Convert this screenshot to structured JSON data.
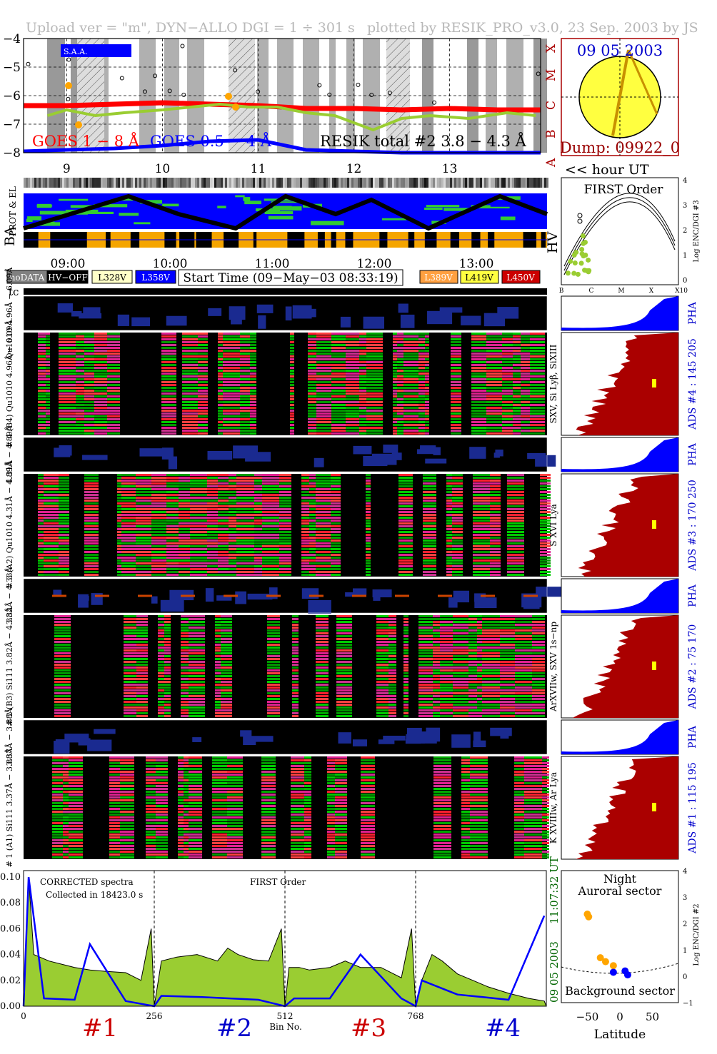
{
  "header": {
    "left": "Upload ver = \"m\", DYN−ALLO DGI =   1 ÷ 301 s",
    "right": "plotted by RESIK_PRO_v3.0, 23 Sep. 2003 by JS"
  },
  "colors": {
    "goes_long": "#ff0000",
    "goes_short": "#0000ff",
    "resik": "#9acd32",
    "orange": "#ffa500",
    "gold": "#f5a500",
    "pha_blue": "#0000ff",
    "ads_red": "#aa0000",
    "sun": "#ffff40",
    "date_blue": "#0000cc",
    "dump": "#990000",
    "green_note": "#006600"
  },
  "goes": {
    "yticks": [
      "−4",
      "−5",
      "−6",
      "−7",
      "−8"
    ],
    "classes": [
      "X",
      "M",
      "C",
      "B",
      "A"
    ],
    "legend_long": "GOES 1 − 8 Å",
    "legend_short": "GOES 0.5 − 4 Å",
    "legend_resik": "RESIK total #2 3.8 − 4.3 Å",
    "saa_label": "S.A.A.",
    "hour_ticks": [
      "9",
      "10",
      "11",
      "12",
      "13"
    ],
    "hour_unit": "<< hour UT"
  },
  "sun_panel": {
    "date": "09 05 2003",
    "dump": "Dump: 09922_0"
  },
  "aux_panels": {
    "prot_label": "PROT & EL",
    "ba_label": "BA",
    "hv_label": "HV",
    "time_ticks": [
      "09:00",
      "10:00",
      "11:00",
      "12:00",
      "13:00"
    ]
  },
  "first_order": {
    "title": "FIRST Order",
    "ylabel": "Log ENC/DGI #3",
    "yticks": [
      "4",
      "3",
      "2",
      "1",
      "0"
    ],
    "xticks": [
      "B",
      "C",
      "M",
      "X",
      "X10"
    ]
  },
  "legend": {
    "items": [
      {
        "label": "noDATA",
        "color": "#808080",
        "text_color": "#ffffff"
      },
      {
        "label": "HV−OFF",
        "color": "#000000",
        "text_color": "#ffffff"
      },
      {
        "label": "L328V",
        "color": "#ffffc8",
        "text_color": "#000000"
      },
      {
        "label": "L358V",
        "color": "#0000ff",
        "text_color": "#ffffff"
      }
    ],
    "items_right": [
      {
        "label": "L389V",
        "color": "#ffa040",
        "text_color": "#ffffff"
      },
      {
        "label": "L419V",
        "color": "#ffff40",
        "text_color": "#000000"
      },
      {
        "label": "L450V",
        "color": "#cc0000",
        "text_color": "#ffffff"
      }
    ],
    "start_time": "Start Time (09−May−03 08:33:19)"
  },
  "tc_label": "tc",
  "channels": [
    {
      "id": "4",
      "pha_label": "Qu1010 4.96Å − 6.09Å",
      "main_label": "# 4 (B4) Qu1010 4.96Å − 6.09Å",
      "right_label": "SXV, Si Lyβ, SiXIII",
      "ads_label": "ADS #4 :  145 205",
      "pha": "PHA"
    },
    {
      "id": "3",
      "pha_label": "4.31Å − 4.89Å",
      "main_label": "# 3 (A2) Qu1010  4.31Å − 4.89Å",
      "right_label": "S XVI Lya",
      "ads_label": "ADS #3 :  170 250",
      "pha": "PHA"
    },
    {
      "id": "2",
      "pha_label": "3.82Å − 4.33Å",
      "main_label": "# 2 (B3) Si111  3.82Å − 4.33Å",
      "right_label": "ArXVIIw, SXV 1s−np",
      "ads_label": "ADS #2 :   75 170",
      "pha": "PHA"
    },
    {
      "id": "1",
      "pha_label": "3.37Å − 3.88Å",
      "main_label": "# 1 (A1) Si111  3.37Å − 3.88Å",
      "right_label": "K XVIIIw, Ar Lya",
      "ads_label": "ADS #1 :  115 195",
      "pha": "PHA"
    }
  ],
  "spectrum": {
    "note1": "CORRECTED spectra",
    "note2": "Collected in 18423.0 s",
    "note3": "FIRST Order",
    "side_date": "09 05 2003",
    "side_time": "11:07:32 UT",
    "xlabel": "Bin No.",
    "xticks": [
      "0",
      "256",
      "512",
      "768"
    ],
    "yticks": [
      "0.10",
      "0.08",
      "0.06",
      "0.04",
      "0.02",
      "0.00"
    ],
    "crystals": [
      "#1",
      "#2",
      "#3",
      "#4"
    ],
    "crystal_colors": [
      "#cc0000",
      "#0000cc",
      "#cc0000",
      "#0000cc"
    ]
  },
  "latitude": {
    "top1": "Night",
    "top2": "Auroral sector",
    "bottom": "Background sector",
    "xlabel": "Latitude",
    "xticks": [
      "−50",
      "0",
      "50"
    ],
    "ylabel": "Log ENC/DGI #2",
    "yticks": [
      "4",
      "3",
      "2",
      "1",
      "0",
      "−1"
    ]
  },
  "chart_data": [
    {
      "type": "line",
      "name": "goes_lightcurve",
      "y_axis": "log flux",
      "ylim": [
        -8,
        -4
      ],
      "x_axis_ticks": [
        "9",
        "10",
        "11",
        "12",
        "13"
      ],
      "xlim": [
        8.55,
        13.95
      ],
      "series": [
        {
          "name": "GOES 1 − 8 Å",
          "x": [
            8.55,
            9.0,
            9.5,
            10.0,
            10.5,
            11.0,
            11.5,
            12.0,
            12.5,
            13.0,
            13.5,
            13.95
          ],
          "values": [
            -6.35,
            -6.35,
            -6.3,
            -6.25,
            -6.3,
            -6.35,
            -6.45,
            -6.45,
            -6.5,
            -6.45,
            -6.5,
            -6.5
          ]
        },
        {
          "name": "GOES 0.5 − 4 Å",
          "x": [
            8.55,
            9.0,
            9.5,
            10.0,
            10.5,
            11.0,
            11.5,
            12.0,
            12.5,
            13.0,
            13.5,
            13.95
          ],
          "values": [
            -7.95,
            -7.9,
            -7.85,
            -7.75,
            -7.6,
            -7.55,
            -7.9,
            -7.95,
            -8.0,
            -8.0,
            -8.0,
            -8.0
          ]
        },
        {
          "name": "RESIK total #2 3.8 − 4.3 Å",
          "x": [
            8.8,
            9.0,
            9.3,
            9.6,
            10.0,
            10.3,
            10.6,
            10.9,
            11.2,
            11.5,
            11.8,
            12.2,
            12.5,
            12.8,
            13.2,
            13.6,
            13.9
          ],
          "values": [
            -6.7,
            -6.5,
            -6.7,
            -6.6,
            -6.5,
            -6.4,
            -6.3,
            -6.4,
            -6.4,
            -6.6,
            -6.7,
            -7.2,
            -6.8,
            -6.7,
            -6.8,
            -6.6,
            -6.7
          ]
        }
      ]
    },
    {
      "type": "line",
      "name": "spectrum",
      "xlabel": "Bin No.",
      "xlim": [
        0,
        1024
      ],
      "ylim": [
        0,
        0.105
      ],
      "series": [
        {
          "name": "corrected spectra (filled)",
          "x": [
            0,
            10,
            20,
            50,
            80,
            100,
            130,
            160,
            200,
            230,
            250,
            256,
            270,
            300,
            340,
            380,
            400,
            420,
            450,
            480,
            505,
            512,
            520,
            540,
            560,
            600,
            630,
            660,
            700,
            740,
            760,
            768,
            780,
            800,
            820,
            850,
            880,
            910,
            950,
            990,
            1020,
            1024
          ],
          "values": [
            0.0,
            0.1,
            0.04,
            0.035,
            0.032,
            0.03,
            0.028,
            0.027,
            0.026,
            0.02,
            0.06,
            0.0,
            0.035,
            0.038,
            0.04,
            0.035,
            0.045,
            0.04,
            0.036,
            0.035,
            0.06,
            0.0,
            0.03,
            0.03,
            0.028,
            0.03,
            0.035,
            0.03,
            0.03,
            0.022,
            0.06,
            0.0,
            0.02,
            0.04,
            0.035,
            0.025,
            0.02,
            0.015,
            0.01,
            0.006,
            0.004,
            0.0
          ]
        },
        {
          "name": "first order (blue)",
          "x": [
            0,
            10,
            40,
            100,
            130,
            200,
            256,
            270,
            350,
            460,
            512,
            530,
            600,
            660,
            740,
            768,
            780,
            850,
            900,
            950,
            1020
          ],
          "values": [
            0.0,
            0.1,
            0.006,
            0.005,
            0.048,
            0.004,
            0.0,
            0.008,
            0.007,
            0.005,
            0.0,
            0.006,
            0.006,
            0.04,
            0.006,
            0.0,
            0.02,
            0.009,
            0.007,
            0.005,
            0.07
          ]
        }
      ]
    },
    {
      "type": "scatter",
      "name": "latitude",
      "xlabel": "Latitude",
      "ylabel": "Log ENC/DGI #2",
      "xlim": [
        -90,
        90
      ],
      "ylim": [
        -1,
        4
      ],
      "series": [
        {
          "name": "orange",
          "x": [
            -50,
            -48,
            -30,
            -22,
            -10
          ],
          "values": [
            2.35,
            2.25,
            0.7,
            0.55,
            0.4
          ]
        },
        {
          "name": "blue",
          "x": [
            -10,
            8,
            12
          ],
          "values": [
            0.15,
            0.2,
            0.05
          ]
        }
      ]
    }
  ]
}
